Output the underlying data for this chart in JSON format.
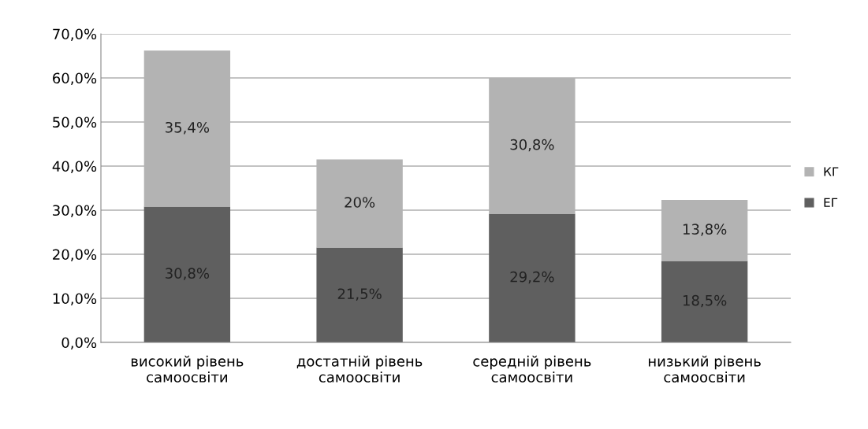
{
  "chart_data": {
    "type": "bar",
    "stacked": true,
    "categories": [
      "високий рівень\nсамоосвіти",
      "достатній рівень\nсамоосвіти",
      "середній рівень\nсамоосвіти",
      "низький рівень\nсамоосвіти"
    ],
    "series": [
      {
        "name": "ЕГ",
        "color": "#5f5f5f",
        "values": [
          30.8,
          21.5,
          29.2,
          18.5
        ],
        "value_labels": [
          "30,8%",
          "21,5%",
          "29,2%",
          "18,5%"
        ]
      },
      {
        "name": "КГ",
        "color": "#b3b3b3",
        "values": [
          35.4,
          20,
          30.8,
          13.8
        ],
        "value_labels": [
          "35,4%",
          "20%",
          "30,8%",
          "13,8%"
        ]
      }
    ],
    "ylim": [
      0,
      70
    ],
    "yticks": [
      {
        "value": 0,
        "label": "0,0%"
      },
      {
        "value": 10,
        "label": "10,0%"
      },
      {
        "value": 20,
        "label": "20,0%"
      },
      {
        "value": 30,
        "label": "30,0%"
      },
      {
        "value": 40,
        "label": "40,0%"
      },
      {
        "value": 50,
        "label": "50,0%"
      },
      {
        "value": 60,
        "label": "60,0%"
      },
      {
        "value": 70,
        "label": "70,0%"
      }
    ],
    "grid": "y",
    "legend": "right"
  }
}
